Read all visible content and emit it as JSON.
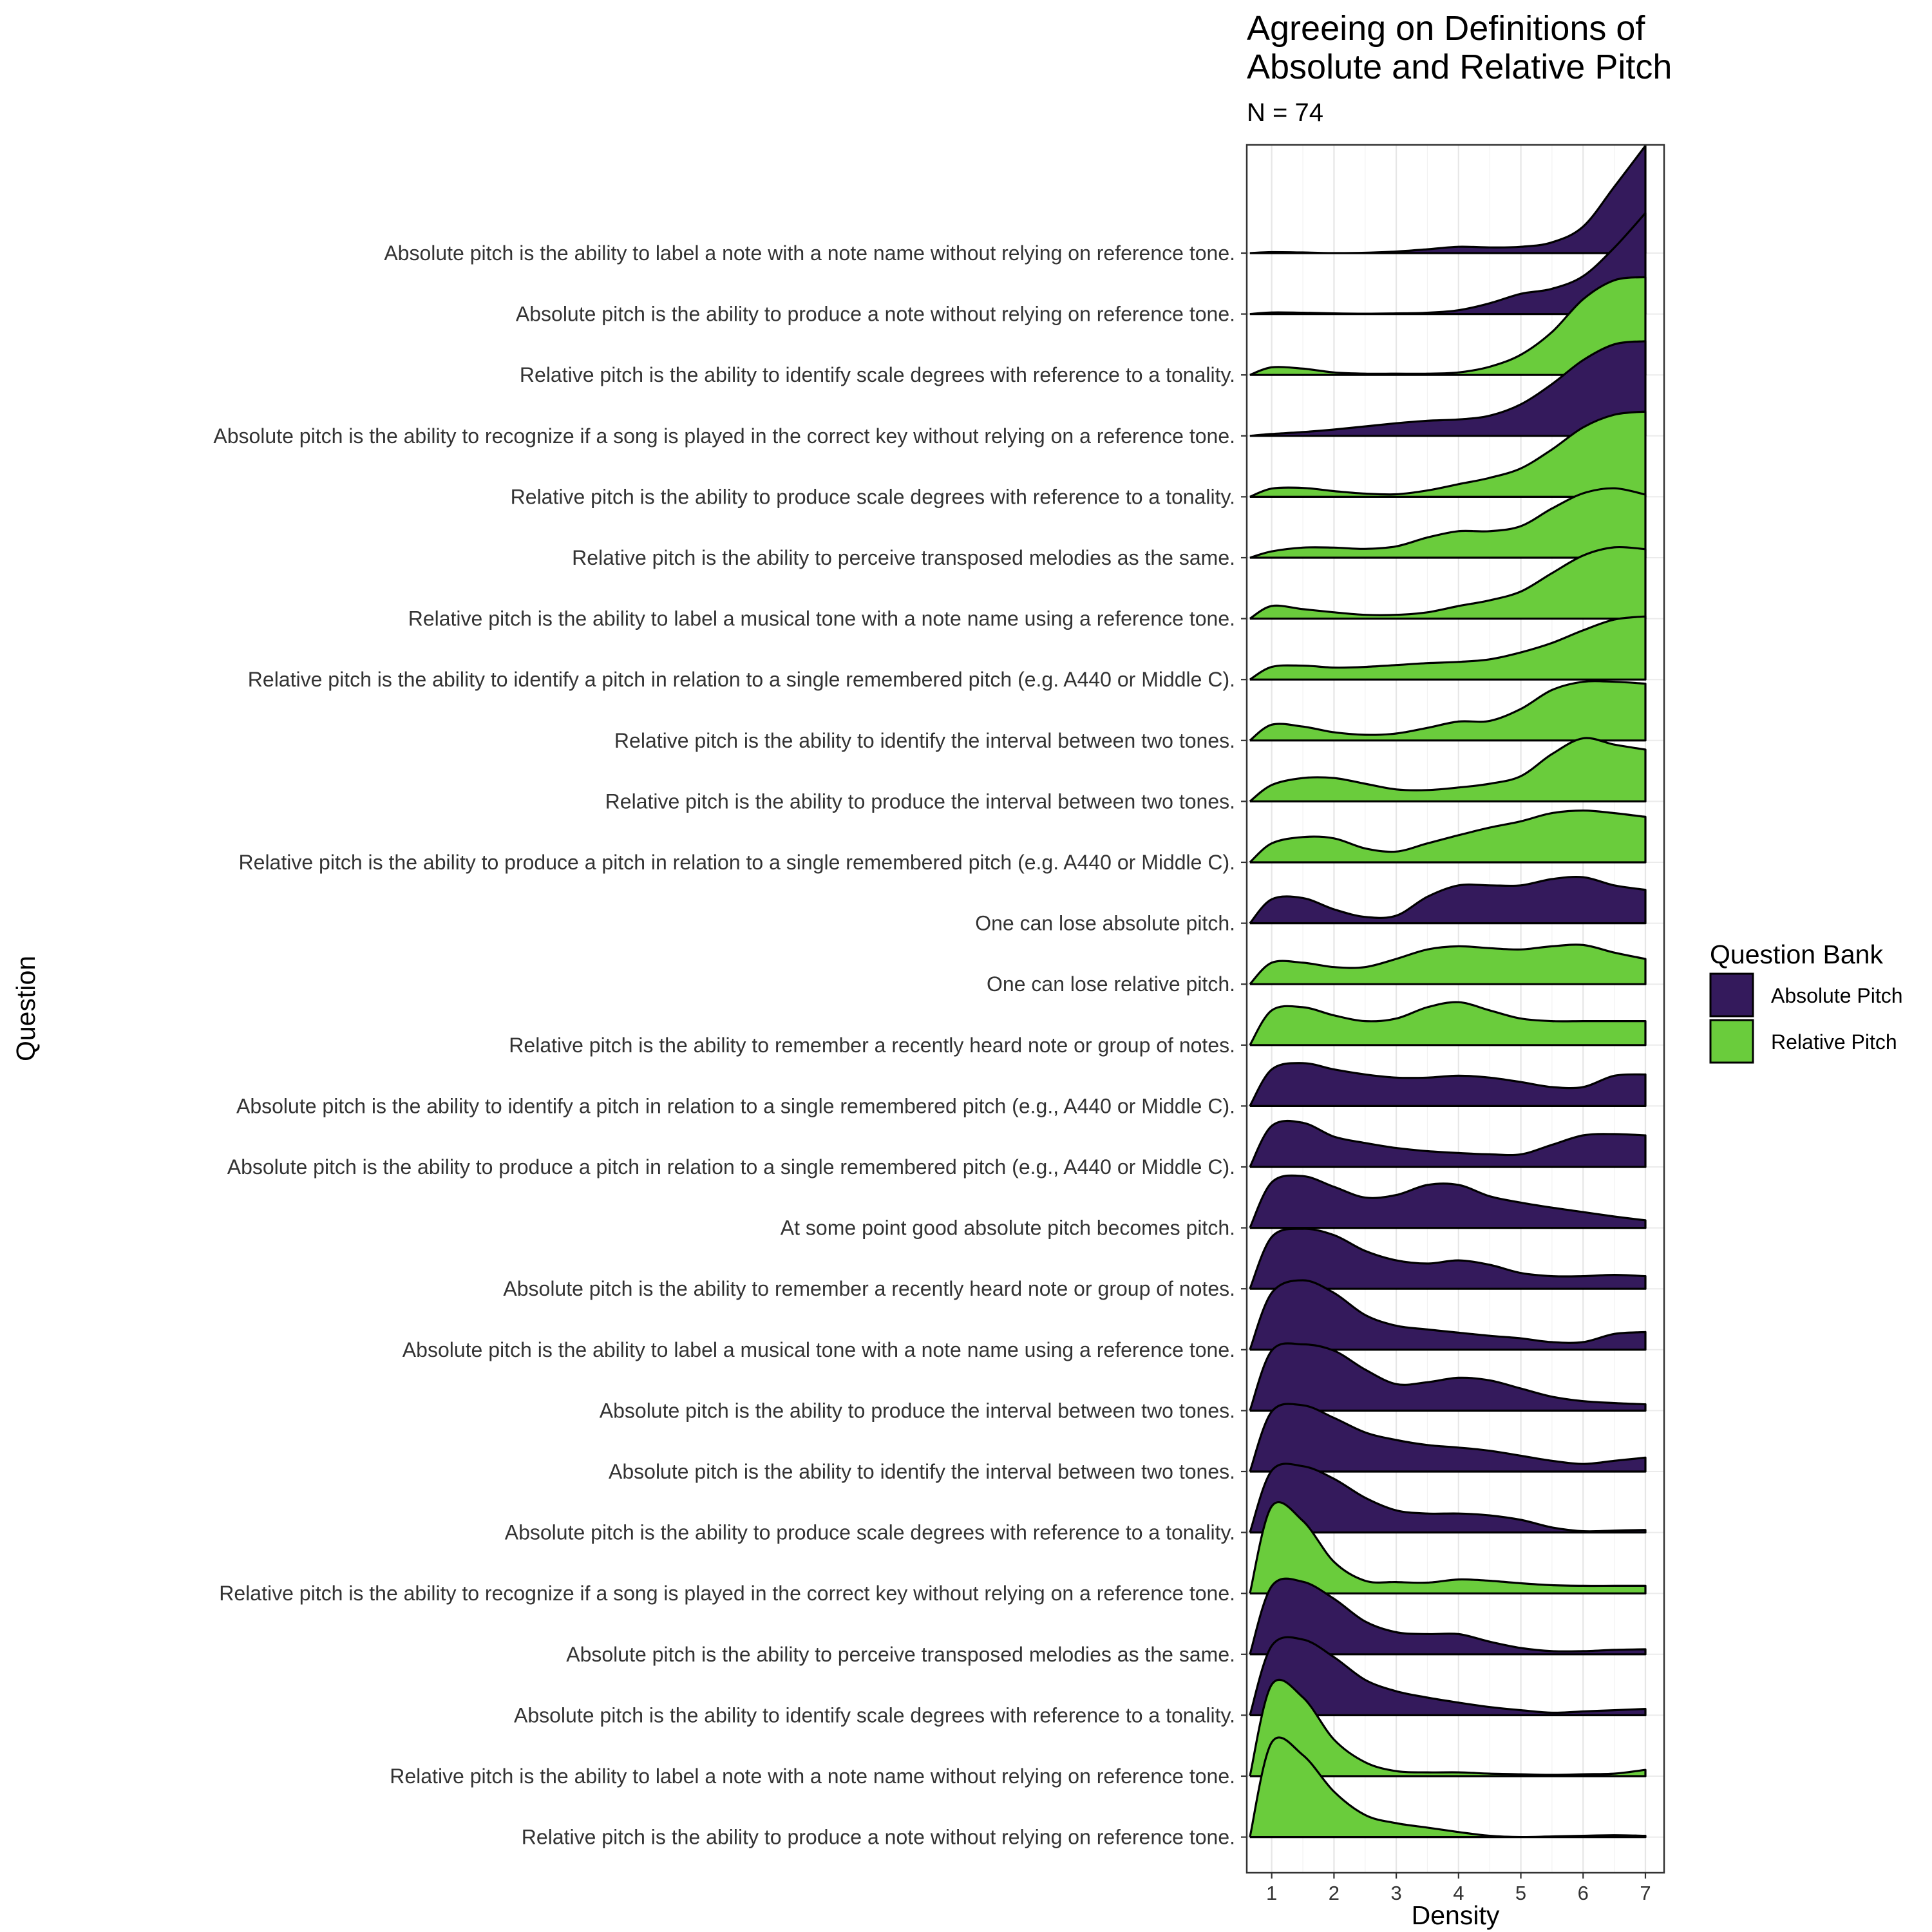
{
  "chart_data": {
    "type": "ridgeline",
    "title": "Agreeing on Definitions of Absolute and Relative Pitch",
    "title_lines": [
      "Agreeing on Definitions of",
      "Absolute and Relative Pitch"
    ],
    "subtitle": "N =  74",
    "xlabel": "Density",
    "ylabel": "Question",
    "xlim": [
      0.6,
      7.3
    ],
    "x_ticks": [
      "1",
      "2",
      "3",
      "4",
      "5",
      "6",
      "7"
    ],
    "grid": true,
    "legend": {
      "title": "Question Bank",
      "position": "right",
      "items": [
        {
          "name": "Absolute Pitch",
          "color": "#341a5c"
        },
        {
          "name": "Relative Pitch",
          "color": "#6acc3c"
        }
      ]
    },
    "x": [
      0.65,
      1,
      1.5,
      2,
      2.5,
      3,
      3.5,
      4,
      4.5,
      5,
      5.5,
      6,
      6.5,
      7
    ],
    "series": [
      {
        "label": "Absolute pitch is the ability to label a note with a note name without relying on reference tone.",
        "group": "Absolute Pitch",
        "density": [
          0.0,
          0.015,
          0.01,
          0.0,
          0.005,
          0.025,
          0.06,
          0.1,
          0.09,
          0.1,
          0.17,
          0.42,
          1.05,
          1.7
        ]
      },
      {
        "label": "Absolute pitch is the ability to produce a note without relying on reference tone.",
        "group": "Absolute Pitch",
        "density": [
          0.0,
          0.025,
          0.02,
          0.01,
          0.005,
          0.01,
          0.02,
          0.06,
          0.17,
          0.32,
          0.4,
          0.6,
          1.05,
          1.6
        ]
      },
      {
        "label": "Relative pitch is the ability to identify scale degrees with reference to a tonality.",
        "group": "Relative Pitch",
        "density": [
          0.0,
          0.12,
          0.1,
          0.04,
          0.02,
          0.02,
          0.02,
          0.04,
          0.13,
          0.32,
          0.68,
          1.2,
          1.5,
          1.55
        ]
      },
      {
        "label": "Absolute pitch is the ability to recognize if a song is played in the correct key without relying on a reference tone.",
        "group": "Absolute Pitch",
        "density": [
          0.0,
          0.03,
          0.06,
          0.1,
          0.15,
          0.2,
          0.24,
          0.26,
          0.32,
          0.5,
          0.82,
          1.2,
          1.45,
          1.5
        ]
      },
      {
        "label": "Relative pitch is the ability to produce scale degrees with reference to a tonality.",
        "group": "Relative Pitch",
        "density": [
          0.0,
          0.13,
          0.14,
          0.09,
          0.05,
          0.04,
          0.1,
          0.2,
          0.3,
          0.45,
          0.75,
          1.1,
          1.3,
          1.35
        ]
      },
      {
        "label": "Relative pitch is the ability to perceive transposed melodies as the same.",
        "group": "Relative Pitch",
        "density": [
          0.0,
          0.1,
          0.16,
          0.16,
          0.14,
          0.18,
          0.32,
          0.42,
          0.42,
          0.5,
          0.78,
          1.02,
          1.1,
          1.0
        ]
      },
      {
        "label": "Relative pitch is the ability to label a musical tone with a note name using a reference tone.",
        "group": "Relative Pitch",
        "density": [
          0.0,
          0.2,
          0.15,
          0.1,
          0.06,
          0.06,
          0.1,
          0.2,
          0.29,
          0.43,
          0.72,
          1.0,
          1.13,
          1.1
        ]
      },
      {
        "label": "Relative pitch is the ability to identify a pitch in relation to a single remembered pitch (e.g.  A440 or Middle C).",
        "group": "Relative Pitch",
        "density": [
          0.0,
          0.2,
          0.22,
          0.19,
          0.2,
          0.23,
          0.26,
          0.28,
          0.32,
          0.43,
          0.58,
          0.78,
          0.95,
          1.0
        ]
      },
      {
        "label": "Relative pitch is the ability to identify the interval between two tones.",
        "group": "Relative Pitch",
        "density": [
          0.0,
          0.25,
          0.22,
          0.13,
          0.09,
          0.11,
          0.2,
          0.3,
          0.31,
          0.5,
          0.8,
          0.93,
          0.93,
          0.9
        ]
      },
      {
        "label": "Relative pitch is the ability to produce the interval between two tones.",
        "group": "Relative Pitch",
        "density": [
          0.0,
          0.26,
          0.37,
          0.37,
          0.28,
          0.19,
          0.18,
          0.22,
          0.28,
          0.4,
          0.75,
          1.0,
          0.9,
          0.82
        ]
      },
      {
        "label": "Relative pitch is the ability to produce a pitch in relation to a single remembered pitch (e.g. A440 or Middle C).",
        "group": "Relative Pitch",
        "density": [
          0.0,
          0.3,
          0.4,
          0.38,
          0.22,
          0.17,
          0.3,
          0.43,
          0.55,
          0.65,
          0.78,
          0.82,
          0.78,
          0.72
        ]
      },
      {
        "label": "One can lose absolute pitch.",
        "group": "Absolute Pitch",
        "density": [
          0.0,
          0.38,
          0.4,
          0.22,
          0.1,
          0.12,
          0.42,
          0.6,
          0.6,
          0.6,
          0.7,
          0.73,
          0.6,
          0.53
        ]
      },
      {
        "label": "One can lose relative pitch.",
        "group": "Relative Pitch",
        "density": [
          0.0,
          0.34,
          0.34,
          0.27,
          0.27,
          0.4,
          0.55,
          0.6,
          0.57,
          0.55,
          0.6,
          0.62,
          0.5,
          0.4
        ]
      },
      {
        "label": "Relative pitch is the ability to remember a recently heard note or group of notes.",
        "group": "Relative Pitch",
        "density": [
          0.0,
          0.55,
          0.6,
          0.47,
          0.38,
          0.42,
          0.6,
          0.68,
          0.55,
          0.42,
          0.38,
          0.38,
          0.38,
          0.38
        ]
      },
      {
        "label": "Absolute pitch is the ability to identify a pitch in relation to a single remembered pitch (e.g., A440 or Middle C).",
        "group": "Absolute Pitch",
        "density": [
          0.0,
          0.58,
          0.68,
          0.58,
          0.5,
          0.45,
          0.45,
          0.48,
          0.45,
          0.38,
          0.3,
          0.3,
          0.48,
          0.5
        ]
      },
      {
        "label": "Absolute pitch is the ability to produce a pitch in relation to a single remembered pitch (e.g., A440 or Middle C).",
        "group": "Absolute Pitch",
        "density": [
          0.0,
          0.65,
          0.7,
          0.48,
          0.38,
          0.3,
          0.25,
          0.22,
          0.2,
          0.2,
          0.35,
          0.5,
          0.52,
          0.5
        ]
      },
      {
        "label": "At some point good absolute pitch becomes pitch.",
        "group": "Absolute Pitch",
        "density": [
          0.0,
          0.72,
          0.82,
          0.65,
          0.48,
          0.52,
          0.68,
          0.68,
          0.5,
          0.4,
          0.32,
          0.25,
          0.18,
          0.12
        ]
      },
      {
        "label": "Absolute pitch is the ability to remember a recently heard note or group of notes.",
        "group": "Absolute Pitch",
        "density": [
          0.0,
          0.82,
          0.95,
          0.85,
          0.6,
          0.45,
          0.4,
          0.45,
          0.38,
          0.25,
          0.2,
          0.2,
          0.22,
          0.2
        ]
      },
      {
        "label": "Absolute pitch is the ability to label a musical tone with a note name using a reference tone.",
        "group": "Absolute Pitch",
        "density": [
          0.0,
          0.9,
          1.1,
          0.9,
          0.55,
          0.38,
          0.32,
          0.27,
          0.22,
          0.18,
          0.12,
          0.12,
          0.25,
          0.28
        ]
      },
      {
        "label": "Absolute pitch is the ability to produce the interval between two tones.",
        "group": "Absolute Pitch",
        "density": [
          0.0,
          0.95,
          1.05,
          0.95,
          0.65,
          0.42,
          0.45,
          0.52,
          0.48,
          0.35,
          0.22,
          0.15,
          0.12,
          0.1
        ]
      },
      {
        "label": "Absolute pitch is the ability to identify the interval between two tones.",
        "group": "Absolute Pitch",
        "density": [
          0.0,
          0.95,
          1.05,
          0.85,
          0.62,
          0.5,
          0.42,
          0.38,
          0.33,
          0.25,
          0.17,
          0.12,
          0.17,
          0.22
        ]
      },
      {
        "label": "Absolute pitch is the ability to produce scale degrees with reference to a tonality.",
        "group": "Absolute Pitch",
        "density": [
          0.0,
          0.98,
          1.05,
          0.85,
          0.55,
          0.35,
          0.3,
          0.3,
          0.27,
          0.2,
          0.08,
          0.02,
          0.03,
          0.04
        ]
      },
      {
        "label": "Relative pitch is the ability to recognize if a song is played in the correct key without relying on a reference tone.",
        "group": "Relative Pitch",
        "density": [
          0.0,
          1.38,
          1.15,
          0.5,
          0.2,
          0.18,
          0.17,
          0.22,
          0.2,
          0.16,
          0.13,
          0.12,
          0.12,
          0.12
        ]
      },
      {
        "label": "Absolute pitch is the ability to perceive transposed melodies as the same.",
        "group": "Absolute Pitch",
        "density": [
          0.0,
          1.08,
          1.15,
          0.88,
          0.52,
          0.35,
          0.32,
          0.32,
          0.2,
          0.1,
          0.05,
          0.05,
          0.07,
          0.08
        ]
      },
      {
        "label": "Absolute pitch is the ability to identify scale degrees with reference to a tonality.",
        "group": "Absolute Pitch",
        "density": [
          0.0,
          1.1,
          1.2,
          0.92,
          0.56,
          0.38,
          0.28,
          0.2,
          0.13,
          0.08,
          0.04,
          0.06,
          0.08,
          0.1
        ]
      },
      {
        "label": "Relative pitch is the ability to label a note with a note name without relying on reference tone.",
        "group": "Relative Pitch",
        "density": [
          0.0,
          1.45,
          1.25,
          0.58,
          0.22,
          0.08,
          0.06,
          0.06,
          0.04,
          0.03,
          0.02,
          0.03,
          0.04,
          0.1
        ]
      },
      {
        "label": "Relative pitch is the ability to produce a note without relying on reference tone.",
        "group": "Relative Pitch",
        "density": [
          0.0,
          1.5,
          1.3,
          0.72,
          0.35,
          0.22,
          0.15,
          0.08,
          0.02,
          0.0,
          0.01,
          0.02,
          0.03,
          0.02
        ]
      }
    ]
  }
}
